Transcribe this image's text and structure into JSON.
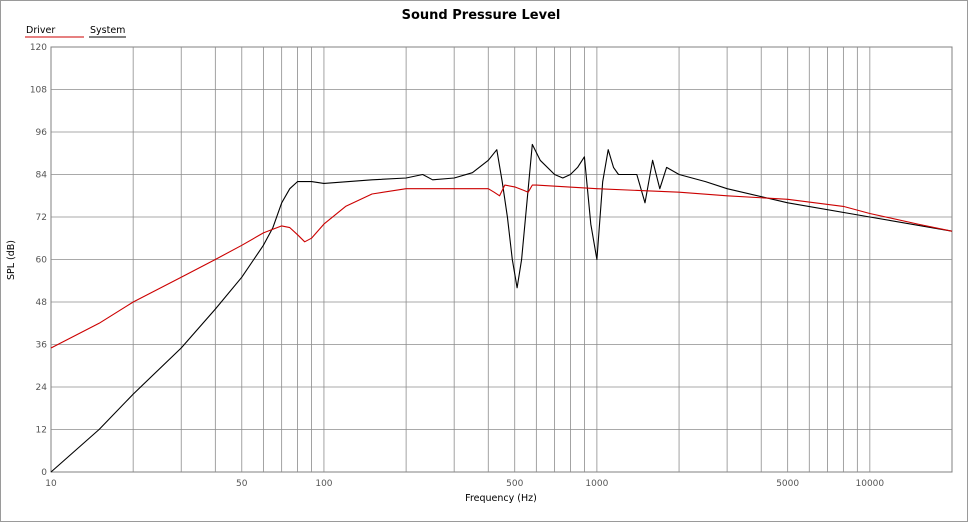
{
  "chart_data": {
    "type": "line",
    "title": "Sound Pressure Level",
    "xlabel": "Frequency (Hz)",
    "ylabel": "SPL (dB)",
    "xscale": "log",
    "xlim": [
      10,
      20000
    ],
    "ylim": [
      0,
      120
    ],
    "grid": true,
    "legend_position": "top-left",
    "x_tick_labels": [
      "10",
      "50",
      "100",
      "500",
      "1000",
      "5000",
      "10000"
    ],
    "x_tick_values": [
      10,
      50,
      100,
      500,
      1000,
      5000,
      10000
    ],
    "y_ticks": [
      0,
      12,
      24,
      36,
      48,
      60,
      72,
      84,
      96,
      108,
      120
    ],
    "series": [
      {
        "name": "Driver",
        "color": "#cc0000",
        "x": [
          10,
          15,
          20,
          30,
          40,
          50,
          60,
          70,
          75,
          80,
          85,
          90,
          100,
          120,
          150,
          200,
          300,
          400,
          420,
          440,
          460,
          500,
          540,
          560,
          580,
          600,
          1000,
          2000,
          3000,
          5000,
          8000,
          10000,
          15000,
          20000
        ],
        "y": [
          35,
          42,
          48,
          55,
          60,
          64,
          67.5,
          69.5,
          69,
          67,
          65,
          66,
          70,
          75,
          78.5,
          80,
          80,
          80,
          79,
          78,
          81,
          80.5,
          79.5,
          79,
          81,
          81,
          80,
          79,
          78,
          77,
          75,
          73,
          70,
          68
        ]
      },
      {
        "name": "System",
        "color": "#000000",
        "x": [
          10,
          15,
          20,
          30,
          40,
          50,
          60,
          65,
          70,
          75,
          80,
          90,
          100,
          150,
          200,
          230,
          250,
          300,
          350,
          400,
          430,
          450,
          470,
          490,
          510,
          530,
          560,
          580,
          620,
          700,
          750,
          800,
          850,
          900,
          950,
          1000,
          1050,
          1100,
          1150,
          1200,
          1400,
          1500,
          1600,
          1700,
          1800,
          2000,
          2500,
          3000,
          5000,
          10000,
          20000
        ],
        "y": [
          0,
          12,
          22,
          35,
          46,
          55,
          64,
          69,
          76,
          80,
          82,
          82,
          81.5,
          82.5,
          83,
          84,
          82.5,
          83,
          84.5,
          88,
          91,
          82,
          72,
          60,
          52,
          60,
          80,
          92.5,
          88,
          84,
          83,
          84,
          86,
          89,
          70,
          60,
          82,
          91,
          86,
          84,
          84,
          76,
          88,
          80,
          86,
          84,
          82,
          80,
          76,
          72,
          68
        ]
      }
    ]
  }
}
